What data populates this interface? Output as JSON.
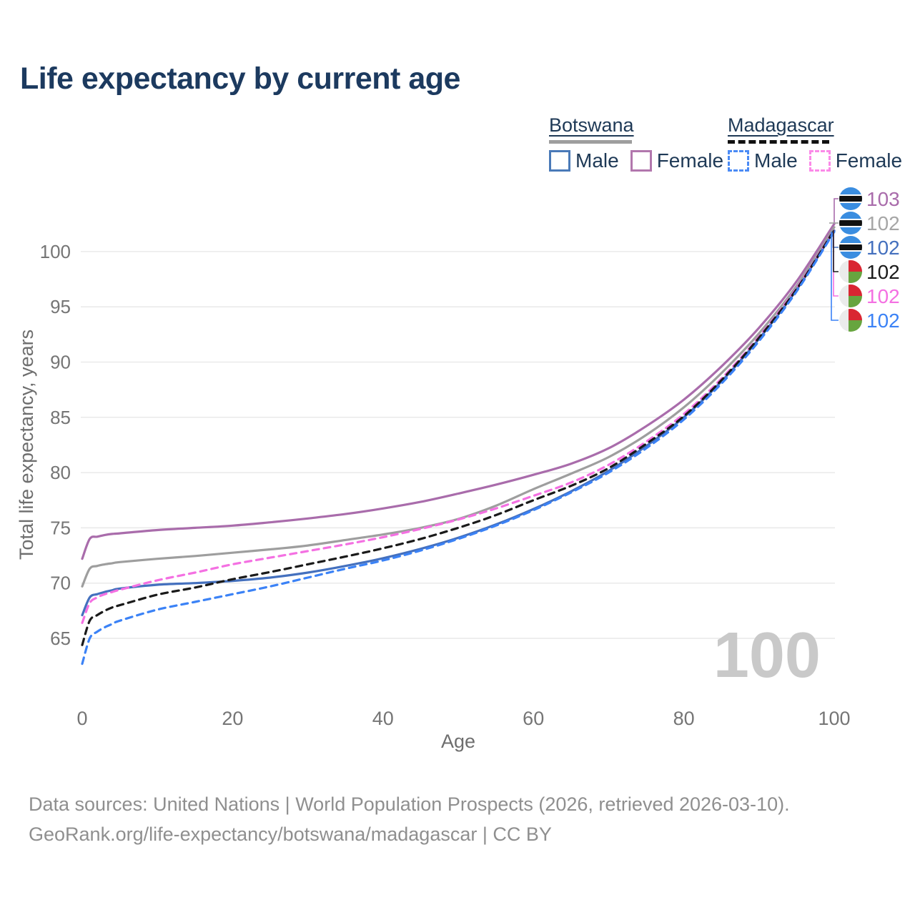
{
  "title": "Life expectancy by current age",
  "legend": {
    "groups": [
      {
        "id": "botswana",
        "country": "Botswana",
        "line_style": "solid",
        "line_color": "#9e9e9e",
        "items": [
          {
            "label": "Male",
            "color": "#4a7ab8",
            "dashed": false
          },
          {
            "label": "Female",
            "color": "#b277ad",
            "dashed": false
          }
        ]
      },
      {
        "id": "madagascar",
        "country": "Madagascar",
        "line_style": "dashed",
        "line_color": "#111111",
        "items": [
          {
            "label": "Male",
            "color": "#4b8bf5",
            "dashed": true
          },
          {
            "label": "Female",
            "color": "#fb8ae8",
            "dashed": true
          }
        ]
      }
    ]
  },
  "chart_data": {
    "type": "line",
    "title": "Life expectancy by current age",
    "xlabel": "Age",
    "ylabel": "Total life expectancy, years",
    "watermark": "100",
    "grid": "horizontal",
    "legend_position": "top-right",
    "x_ticks": [
      0,
      20,
      40,
      60,
      80,
      100
    ],
    "y_ticks": [
      65,
      70,
      75,
      80,
      85,
      90,
      95,
      100
    ],
    "xlim": [
      0,
      100
    ],
    "ylim": [
      62,
      104
    ],
    "x": [
      0,
      1,
      2,
      3,
      4,
      5,
      10,
      15,
      20,
      25,
      30,
      35,
      40,
      45,
      50,
      55,
      60,
      65,
      70,
      75,
      80,
      85,
      90,
      95,
      100
    ],
    "series": [
      {
        "id": "botswana-female",
        "name": "Botswana Female",
        "color": "#a96cab",
        "dashed": false,
        "label_row": 0,
        "end_label": "103",
        "label_color": "#a96cab",
        "flag": "botswana",
        "values": [
          72.2,
          74.0,
          74.2,
          74.35,
          74.45,
          74.5,
          74.8,
          75.0,
          75.2,
          75.5,
          75.85,
          76.25,
          76.75,
          77.35,
          78.1,
          78.9,
          79.8,
          80.8,
          82.2,
          84.2,
          86.6,
          89.6,
          93.1,
          97.3,
          102.5
        ]
      },
      {
        "id": "botswana-all",
        "name": "Botswana",
        "color": "#9e9e9e",
        "dashed": false,
        "label_row": 1,
        "end_label": "102",
        "label_color": "#a6a6a6",
        "flag": "botswana",
        "values": [
          69.7,
          71.3,
          71.55,
          71.7,
          71.8,
          71.9,
          72.2,
          72.45,
          72.75,
          73.05,
          73.4,
          73.9,
          74.4,
          75.0,
          75.8,
          77.0,
          78.5,
          79.9,
          81.4,
          83.4,
          85.9,
          89.0,
          92.6,
          96.9,
          102.2
        ]
      },
      {
        "id": "botswana-male",
        "name": "Botswana Male",
        "color": "#4470be",
        "dashed": false,
        "label_row": 2,
        "end_label": "102",
        "label_color": "#4470be",
        "flag": "botswana",
        "values": [
          67.1,
          68.7,
          69.0,
          69.2,
          69.35,
          69.5,
          69.85,
          70.0,
          70.2,
          70.5,
          70.95,
          71.55,
          72.25,
          73.1,
          74.1,
          75.3,
          76.7,
          78.3,
          80.15,
          82.4,
          85.0,
          88.25,
          92.1,
          96.55,
          101.9
        ]
      },
      {
        "id": "madagascar-female",
        "name": "Madagascar Female",
        "color": "#f470e2",
        "dashed": true,
        "label_row": 4,
        "end_label": "102",
        "label_color": "#f470e2",
        "flag": "madagascar",
        "values": [
          66.4,
          68.2,
          68.7,
          69.0,
          69.2,
          69.4,
          70.25,
          70.95,
          71.7,
          72.3,
          72.9,
          73.5,
          74.15,
          74.9,
          75.75,
          76.75,
          77.9,
          79.1,
          80.7,
          82.8,
          85.3,
          88.5,
          92.3,
          96.7,
          102.0
        ]
      },
      {
        "id": "madagascar-all",
        "name": "Madagascar",
        "color": "#1a1a1a",
        "dashed": true,
        "label_row": 3,
        "end_label": "102",
        "label_color": "#1a1a1a",
        "flag": "madagascar",
        "values": [
          64.4,
          66.6,
          67.1,
          67.5,
          67.8,
          68.0,
          68.95,
          69.6,
          70.35,
          71.0,
          71.7,
          72.4,
          73.15,
          74.0,
          75.0,
          76.15,
          77.5,
          78.8,
          80.4,
          82.6,
          85.1,
          88.35,
          92.2,
          96.6,
          101.95
        ]
      },
      {
        "id": "madagascar-male",
        "name": "Madagascar Male",
        "color": "#3b82f6",
        "dashed": true,
        "label_row": 5,
        "end_label": "102",
        "label_color": "#3b82f6",
        "flag": "madagascar",
        "values": [
          62.7,
          65.0,
          65.6,
          66.0,
          66.3,
          66.6,
          67.6,
          68.3,
          69.0,
          69.7,
          70.5,
          71.3,
          72.05,
          72.95,
          74.0,
          75.2,
          76.6,
          78.2,
          80.0,
          82.2,
          84.8,
          88.05,
          91.9,
          96.4,
          101.8
        ]
      }
    ],
    "flag_colors": {
      "botswana": {
        "blue": "#3a8de0",
        "black": "#111111",
        "white": "#ffffff"
      },
      "madagascar": {
        "white": "#ebebeb",
        "red": "#d92632",
        "green": "#67a53f"
      }
    }
  },
  "footer": {
    "line1": "Data sources: United Nations | World Population Prospects (2026, retrieved 2026-03-10).",
    "line2": "GeoRank.org/life-expectancy/botswana/madagascar | CC BY"
  }
}
